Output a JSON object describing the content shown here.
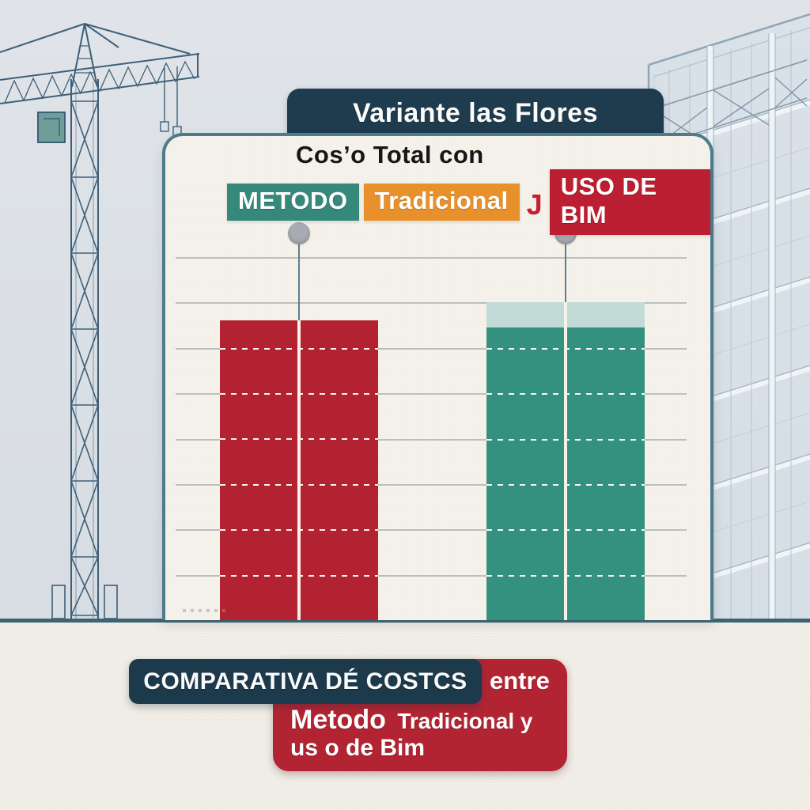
{
  "scene": {
    "top_banner": {
      "title": "Variante las Flores"
    },
    "panel": {
      "subtitle": "Cosʼo Total con",
      "badges": [
        {
          "label": "METODO",
          "color": "#35897b"
        },
        {
          "label": "Tradicional",
          "color": "#e8912c"
        },
        {
          "label": "J",
          "color": "#c4202f",
          "type": "separator"
        },
        {
          "label": "USO DE BIM",
          "color": "#bd1f32"
        }
      ]
    },
    "bottom_banner": {
      "line1_dark": "COMPARATIVA DÉ COSTCS",
      "line1_red": "entre",
      "line2_strong": "Metodo",
      "line2_rest": "Tradicional y",
      "line3": "us o de Bim"
    },
    "illustrations": {
      "left": "tower-crane-wireframe",
      "right": "glass-building-wireframe"
    },
    "colors": {
      "banner_navy": "#1e3c4d",
      "panel_border_teal": "#4e7b8a",
      "panel_background": "#f5f2eb",
      "ground_line_teal": "#3e6474",
      "sky": "#dbe0e6",
      "pin_gray": "#a9abb2",
      "bottom_navy": "#1c3a4b",
      "bottom_red": "#b32433"
    }
  },
  "chart_data": {
    "type": "bar",
    "title": "Cosʼo Total con METODO Tradicional | USO DE BIM — Variante las Flores",
    "categories": [
      "Metodo Tradicional",
      "Uso de BIM"
    ],
    "values": [
      6.6,
      7.0
    ],
    "bars": [
      {
        "category": "Metodo Tradicional",
        "total": 6.6,
        "segments": [
          {
            "value": 6.6,
            "color": "#b32230"
          }
        ]
      },
      {
        "category": "Uso de BIM",
        "total": 7.0,
        "segments": [
          {
            "value": 6.45,
            "color": "#35917f"
          },
          {
            "value": 0.55,
            "color": "#c3dbd7"
          }
        ]
      }
    ],
    "ylim": [
      0,
      8
    ],
    "gridline_step": 1,
    "grid": true,
    "axis_tick_labels_shown": false,
    "value_labels_shown": false,
    "legend_position": "none",
    "pin_markers_above_bars": true
  }
}
